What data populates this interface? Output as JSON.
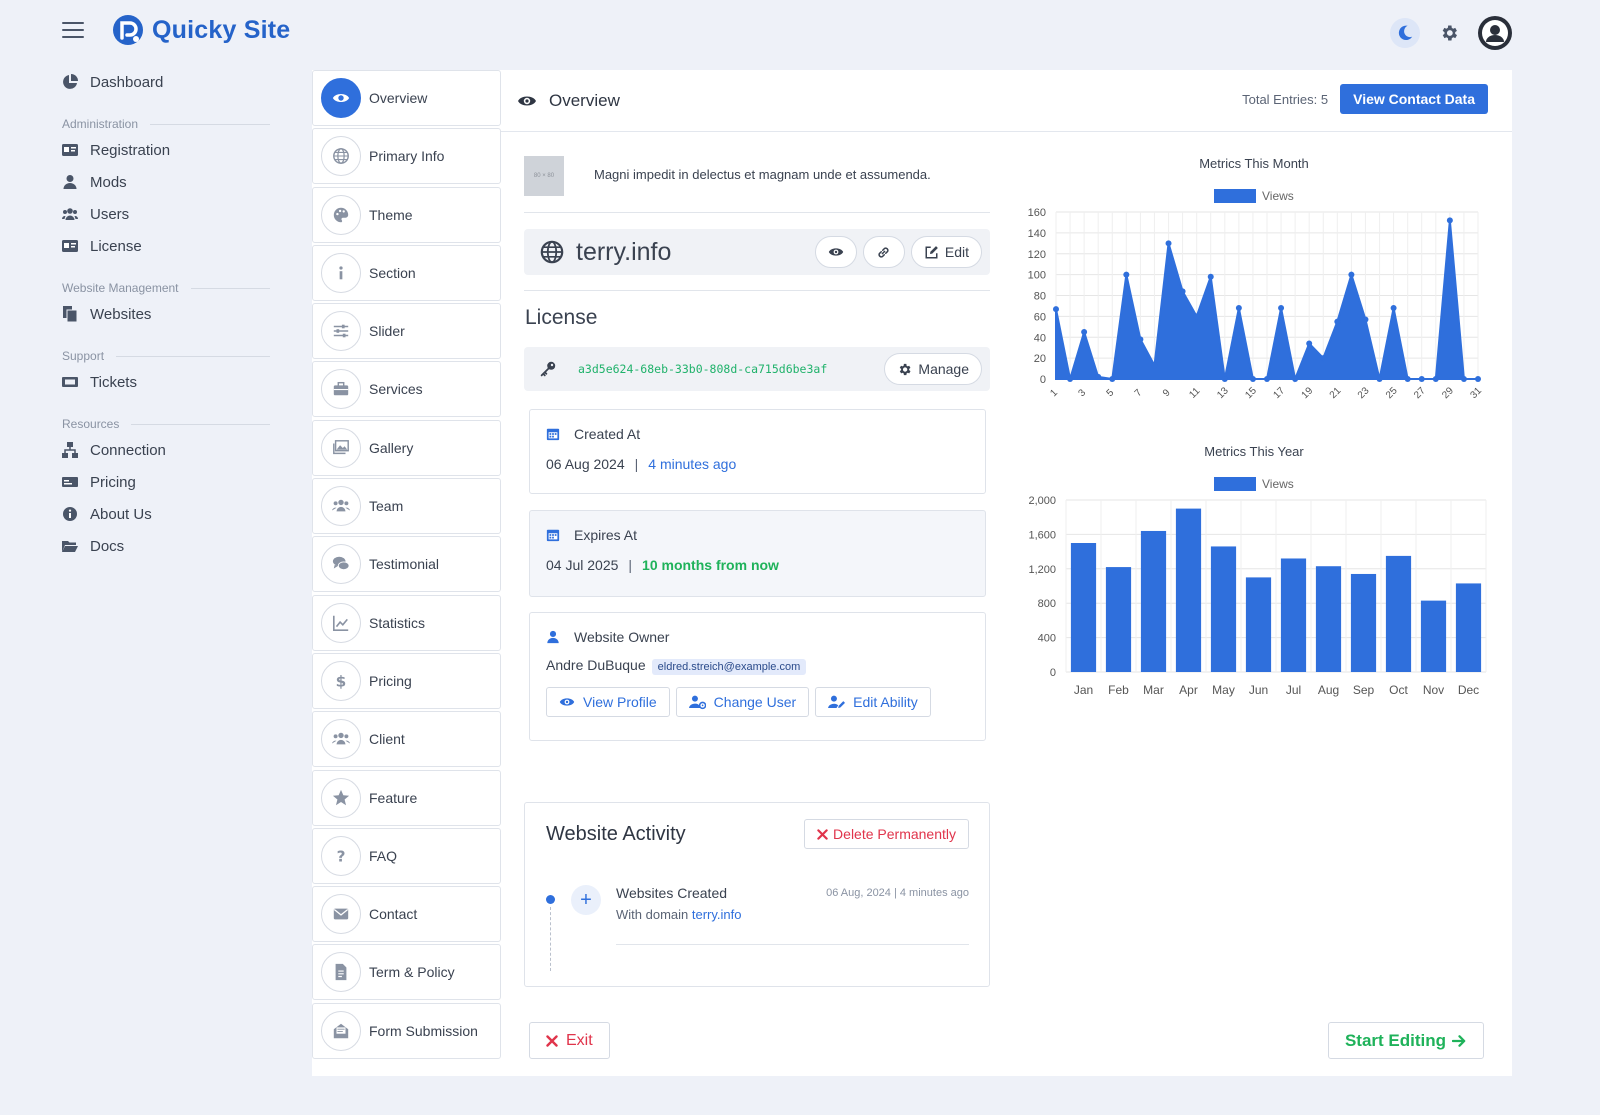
{
  "app": {
    "name": "Quicky Site"
  },
  "nav": {
    "dashboard": "Dashboard",
    "sections": [
      {
        "title": "Administration",
        "items": [
          "Registration",
          "Mods",
          "Users",
          "License"
        ]
      },
      {
        "title": "Website Management",
        "items": [
          "Websites"
        ]
      },
      {
        "title": "Support",
        "items": [
          "Tickets"
        ]
      },
      {
        "title": "Resources",
        "items": [
          "Connection",
          "Pricing",
          "About Us",
          "Docs"
        ]
      }
    ]
  },
  "tabs": [
    "Overview",
    "Primary Info",
    "Theme",
    "Section",
    "Slider",
    "Services",
    "Gallery",
    "Team",
    "Testimonial",
    "Statistics",
    "Pricing",
    "Client",
    "Feature",
    "FAQ",
    "Contact",
    "Term & Policy",
    "Form Submission"
  ],
  "header": {
    "title": "Overview",
    "total_entries": "Total Entries: 5",
    "view_contact": "View Contact Data"
  },
  "site": {
    "thumb_label": "80 × 80",
    "description": "Magni impedit in delectus et magnam unde et assumenda.",
    "domain": "terry.info",
    "edit_label": "Edit"
  },
  "license": {
    "title": "License",
    "key": "a3d5e624-68eb-33b0-808d-ca715d6be3af",
    "manage_label": "Manage",
    "created_label": "Created At",
    "created_date": "06 Aug 2024",
    "created_relative": "4 minutes ago",
    "expires_label": "Expires At",
    "expires_date": "04 Jul 2025",
    "expires_relative": "10 months from now"
  },
  "owner": {
    "label": "Website Owner",
    "name": "Andre DuBuque",
    "email": "eldred.streich@example.com",
    "view_profile": "View Profile",
    "change_user": "Change User",
    "edit_ability": "Edit Ability"
  },
  "activity": {
    "title": "Website Activity",
    "delete_label": "Delete Permanently",
    "item_title": "Websites Created",
    "item_sub_prefix": "With domain",
    "item_domain": "terry.info",
    "item_time": "06 Aug, 2024 | 4 minutes ago"
  },
  "footer": {
    "exit_label": "Exit",
    "start_label": "Start Editing"
  },
  "colors": {
    "accent": "#2f6fdc",
    "success": "#1fb25a",
    "danger": "#e0344b"
  },
  "chart_data": [
    {
      "type": "area",
      "title": "Metrics This Month",
      "series": [
        {
          "name": "Views",
          "values": [
            67,
            0,
            45,
            2,
            0,
            100,
            38,
            13,
            130,
            84,
            60,
            98,
            0,
            68,
            0,
            0,
            68,
            0,
            34,
            20,
            55,
            100,
            57,
            0,
            68,
            0,
            0,
            0,
            152,
            0,
            0
          ]
        }
      ],
      "x": [
        1,
        2,
        3,
        4,
        5,
        6,
        7,
        8,
        9,
        10,
        11,
        12,
        13,
        14,
        15,
        16,
        17,
        18,
        19,
        20,
        21,
        22,
        23,
        24,
        25,
        26,
        27,
        28,
        29,
        30,
        31
      ],
      "x_tick_labels": [
        "1",
        "3",
        "5",
        "7",
        "9",
        "11",
        "13",
        "15",
        "17",
        "19",
        "21",
        "23",
        "25",
        "27",
        "29",
        "31"
      ],
      "ylim": [
        0,
        160
      ],
      "y_ticks": [
        "0",
        "20",
        "40",
        "60",
        "80",
        "100",
        "120",
        "140",
        "160"
      ],
      "grid": true,
      "legend": "top"
    },
    {
      "type": "bar",
      "title": "Metrics This Year",
      "categories": [
        "Jan",
        "Feb",
        "Mar",
        "Apr",
        "May",
        "Jun",
        "Jul",
        "Aug",
        "Sep",
        "Oct",
        "Nov",
        "Dec"
      ],
      "series": [
        {
          "name": "Views",
          "values": [
            1500,
            1220,
            1640,
            1900,
            1460,
            1100,
            1320,
            1230,
            1140,
            1350,
            830,
            1030
          ]
        }
      ],
      "ylim": [
        0,
        2000
      ],
      "y_ticks": [
        "0",
        "400",
        "800",
        "1,200",
        "1,600",
        "2,000"
      ],
      "grid": true,
      "legend": "top"
    }
  ]
}
